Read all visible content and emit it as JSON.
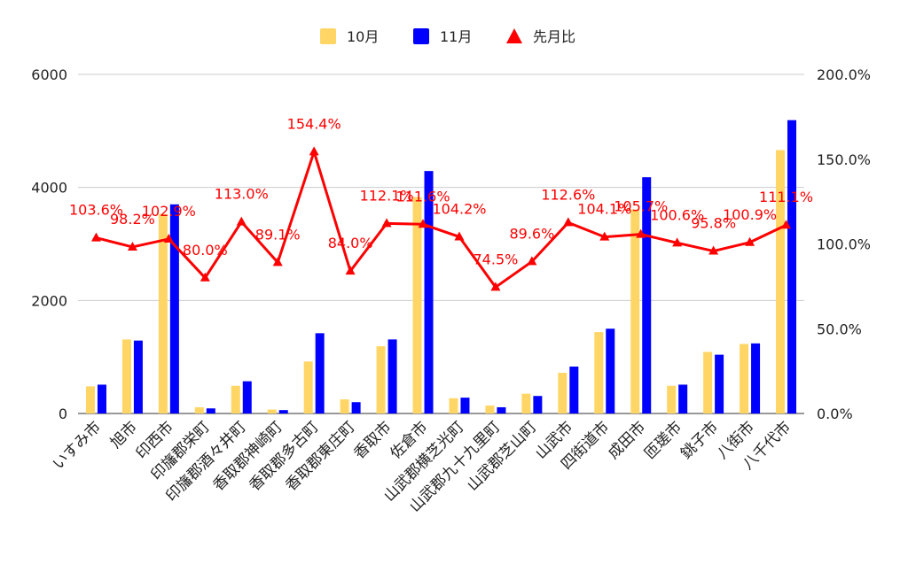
{
  "chart_data": {
    "type": "bar+line",
    "categories": [
      "いすみ市",
      "旭市",
      "印西市",
      "印旛郡栄町",
      "印旛郡酒々井町",
      "香取郡神崎町",
      "香取郡多古町",
      "香取郡東庄町",
      "香取市",
      "佐倉市",
      "山武郡横芝光町",
      "山武郡九十九里町",
      "山武郡芝山町",
      "山武市",
      "四街道市",
      "成田市",
      "匝瑳市",
      "銚子市",
      "八街市",
      "八千代市"
    ],
    "series": [
      {
        "name": "10月",
        "type": "bar",
        "axis": "left",
        "color": "#FFD666",
        "values": [
          480,
          1310,
          3530,
          110,
          490,
          70,
          920,
          250,
          1190,
          3830,
          270,
          140,
          350,
          720,
          1440,
          3610,
          490,
          1090,
          1230,
          4660
        ]
      },
      {
        "name": "11月",
        "type": "bar",
        "axis": "left",
        "color": "#0000FF",
        "values": [
          510,
          1290,
          3700,
          90,
          570,
          60,
          1420,
          200,
          1310,
          4290,
          280,
          110,
          310,
          830,
          1500,
          4180,
          510,
          1040,
          1240,
          5190
        ]
      },
      {
        "name": "先月比",
        "type": "line",
        "axis": "right",
        "color": "#FF0000",
        "marker": "triangle",
        "values": [
          103.6,
          98.2,
          102.9,
          80.0,
          113.0,
          89.1,
          154.4,
          84.0,
          112.1,
          111.6,
          104.2,
          74.5,
          89.6,
          112.6,
          104.1,
          105.7,
          100.6,
          95.8,
          100.9,
          111.1
        ],
        "labels": [
          "103.6%",
          "98.2%",
          "102.9%",
          "80.0%",
          "113.0%",
          "89.1%",
          "154.4%",
          "84.0%",
          "112.1%",
          "111.6%",
          "104.2%",
          "74.5%",
          "89.6%",
          "112.6%",
          "104.1%",
          "105.7%",
          "100.6%",
          "95.8%",
          "100.9%",
          "111.1%"
        ]
      }
    ],
    "y_left": {
      "min": 0,
      "max": 6000,
      "ticks": [
        "0",
        "2000",
        "4000",
        "6000"
      ]
    },
    "y_right": {
      "min": 0,
      "max": 200,
      "ticks": [
        "0.0%",
        "50.0%",
        "100.0%",
        "150.0%",
        "200.0%"
      ]
    },
    "grid": true,
    "legend_position": "top"
  }
}
